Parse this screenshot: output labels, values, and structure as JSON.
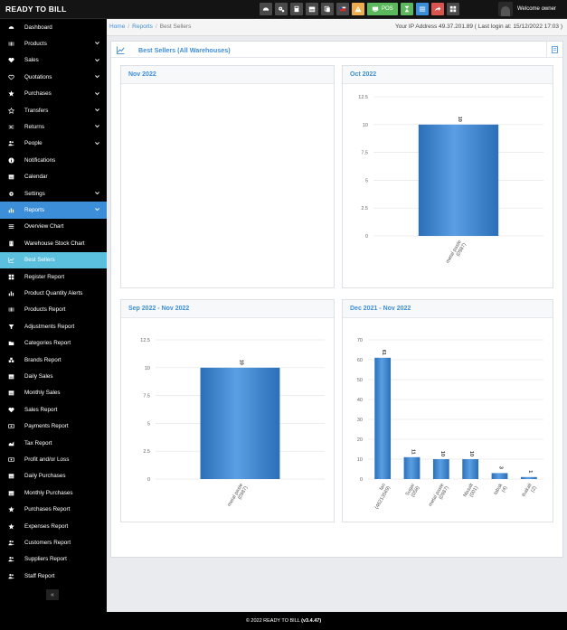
{
  "app": {
    "brand": "READY TO BILL"
  },
  "topbar": {
    "buttons": [
      {
        "icon": "dashboard-icon",
        "color": "#4a4a4a",
        "label": ""
      },
      {
        "icon": "cogs-icon",
        "color": "#4a4a4a",
        "label": ""
      },
      {
        "icon": "calculator-icon",
        "color": "#4a4a4a",
        "label": ""
      },
      {
        "icon": "calendar-icon",
        "color": "#4a4a4a",
        "label": ""
      },
      {
        "icon": "copy-icon",
        "color": "#4a4a4a",
        "label": ""
      },
      {
        "icon": "flag-icon",
        "color": "#4a4a4a",
        "label": ""
      },
      {
        "icon": "alert-icon",
        "color": "#f0ad4e",
        "label": ""
      },
      {
        "icon": "pos-icon",
        "color": "#5cb85c",
        "label": "POS"
      },
      {
        "icon": "hourglass-icon",
        "color": "#5cb85c",
        "label": ""
      },
      {
        "icon": "list-icon",
        "color": "#3d8ed9",
        "label": ""
      },
      {
        "icon": "share-icon",
        "color": "#d9534f",
        "label": ""
      },
      {
        "icon": "grid-icon",
        "color": "#4a4a4a",
        "label": ""
      }
    ],
    "welcome": "Welcome owner"
  },
  "sidebar": {
    "items": [
      {
        "label": "Dashboard",
        "icon": "dashboard-icon",
        "chevron": false,
        "state": ""
      },
      {
        "label": "Products",
        "icon": "barcode-icon",
        "chevron": true,
        "state": ""
      },
      {
        "label": "Sales",
        "icon": "heart-icon",
        "chevron": true,
        "state": ""
      },
      {
        "label": "Quotations",
        "icon": "heart-outline-icon",
        "chevron": true,
        "state": ""
      },
      {
        "label": "Purchases",
        "icon": "star-icon",
        "chevron": true,
        "state": ""
      },
      {
        "label": "Transfers",
        "icon": "star-outline-icon",
        "chevron": true,
        "state": ""
      },
      {
        "label": "Returns",
        "icon": "random-icon",
        "chevron": true,
        "state": ""
      },
      {
        "label": "People",
        "icon": "users-icon",
        "chevron": true,
        "state": ""
      },
      {
        "label": "Notifications",
        "icon": "info-icon",
        "chevron": false,
        "state": ""
      },
      {
        "label": "Calendar",
        "icon": "calendar-icon",
        "chevron": false,
        "state": ""
      },
      {
        "label": "Settings",
        "icon": "cog-icon",
        "chevron": true,
        "state": ""
      },
      {
        "label": "Reports",
        "icon": "bar-chart-icon",
        "chevron": true,
        "state": "active-parent"
      },
      {
        "label": "Overview Chart",
        "icon": "list-icon",
        "chevron": false,
        "state": ""
      },
      {
        "label": "Warehouse Stock Chart",
        "icon": "building-icon",
        "chevron": false,
        "state": ""
      },
      {
        "label": "Best Sellers",
        "icon": "line-chart-icon",
        "chevron": false,
        "state": "active-sub"
      },
      {
        "label": "Register Report",
        "icon": "th-icon",
        "chevron": false,
        "state": ""
      },
      {
        "label": "Product Quantity Alerts",
        "icon": "bar-chart-icon",
        "chevron": false,
        "state": ""
      },
      {
        "label": "Products Report",
        "icon": "barcode-icon",
        "chevron": false,
        "state": ""
      },
      {
        "label": "Adjustments Report",
        "icon": "filter-icon",
        "chevron": false,
        "state": ""
      },
      {
        "label": "Categories Report",
        "icon": "folder-icon",
        "chevron": false,
        "state": ""
      },
      {
        "label": "Brands Report",
        "icon": "cubes-icon",
        "chevron": false,
        "state": ""
      },
      {
        "label": "Daily Sales",
        "icon": "calendar-icon",
        "chevron": false,
        "state": ""
      },
      {
        "label": "Monthly Sales",
        "icon": "calendar-icon",
        "chevron": false,
        "state": ""
      },
      {
        "label": "Sales Report",
        "icon": "heart-icon",
        "chevron": false,
        "state": ""
      },
      {
        "label": "Payments Report",
        "icon": "money-icon",
        "chevron": false,
        "state": ""
      },
      {
        "label": "Tax Report",
        "icon": "area-chart-icon",
        "chevron": false,
        "state": ""
      },
      {
        "label": "Profit and/or Loss",
        "icon": "money-icon",
        "chevron": false,
        "state": ""
      },
      {
        "label": "Daily Purchases",
        "icon": "calendar-icon",
        "chevron": false,
        "state": ""
      },
      {
        "label": "Monthly Purchases",
        "icon": "calendar-icon",
        "chevron": false,
        "state": ""
      },
      {
        "label": "Purchases Report",
        "icon": "star-icon",
        "chevron": false,
        "state": ""
      },
      {
        "label": "Expenses Report",
        "icon": "star-icon",
        "chevron": false,
        "state": ""
      },
      {
        "label": "Customers Report",
        "icon": "users-icon",
        "chevron": false,
        "state": ""
      },
      {
        "label": "Suppliers Report",
        "icon": "users-icon",
        "chevron": false,
        "state": ""
      },
      {
        "label": "Staff Report",
        "icon": "users-icon",
        "chevron": false,
        "state": ""
      }
    ],
    "collapse_label": "«"
  },
  "breadcrumb": {
    "home": "Home",
    "reports": "Reports",
    "current": "Best Sellers"
  },
  "ip_info": "Your IP Address 49.37.201.89 ( Last login at: 15/12/2022 17:03 )",
  "page": {
    "title": "Best Sellers (All Warehouses)"
  },
  "boxes": {
    "nov2022": "Nov 2022",
    "oct2022": "Oct 2022",
    "sep_nov": "Sep 2022 - Nov 2022",
    "dec_nov": "Dec 2021 - Nov 2022"
  },
  "chart_data": [
    {
      "type": "bar",
      "title": "Nov 2022",
      "categories": [],
      "values": []
    },
    {
      "type": "bar",
      "title": "Oct 2022",
      "categories": [
        "metal paste (0987)"
      ],
      "values": [
        10
      ],
      "ylim": [
        0,
        12.5
      ],
      "yticks": [
        "0",
        "2.5",
        "5",
        "7.5",
        "10",
        "12.5"
      ]
    },
    {
      "type": "bar",
      "title": "Sep 2022 - Nov 2022",
      "categories": [
        "metal paste (0987)"
      ],
      "values": [
        10
      ],
      "ylim": [
        0,
        12.5
      ],
      "yticks": [
        "0",
        "2.5",
        "5",
        "7.5",
        "10",
        "12.5"
      ]
    },
    {
      "type": "bar",
      "title": "Dec 2021 - Nov 2022",
      "categories": [
        "fan (46213569)",
        "Sugar (058)",
        "metal paste (0987)",
        "Masalt (001)",
        "tabak (4)",
        "thakali (2)"
      ],
      "values": [
        61,
        11,
        10,
        10,
        3,
        1
      ],
      "ylim": [
        0,
        70
      ],
      "yticks": [
        "0",
        "10",
        "20",
        "30",
        "40",
        "50",
        "60",
        "70"
      ]
    }
  ],
  "footer": {
    "text": "© 2022 READY TO BILL",
    "version": "(v3.4.47)"
  }
}
